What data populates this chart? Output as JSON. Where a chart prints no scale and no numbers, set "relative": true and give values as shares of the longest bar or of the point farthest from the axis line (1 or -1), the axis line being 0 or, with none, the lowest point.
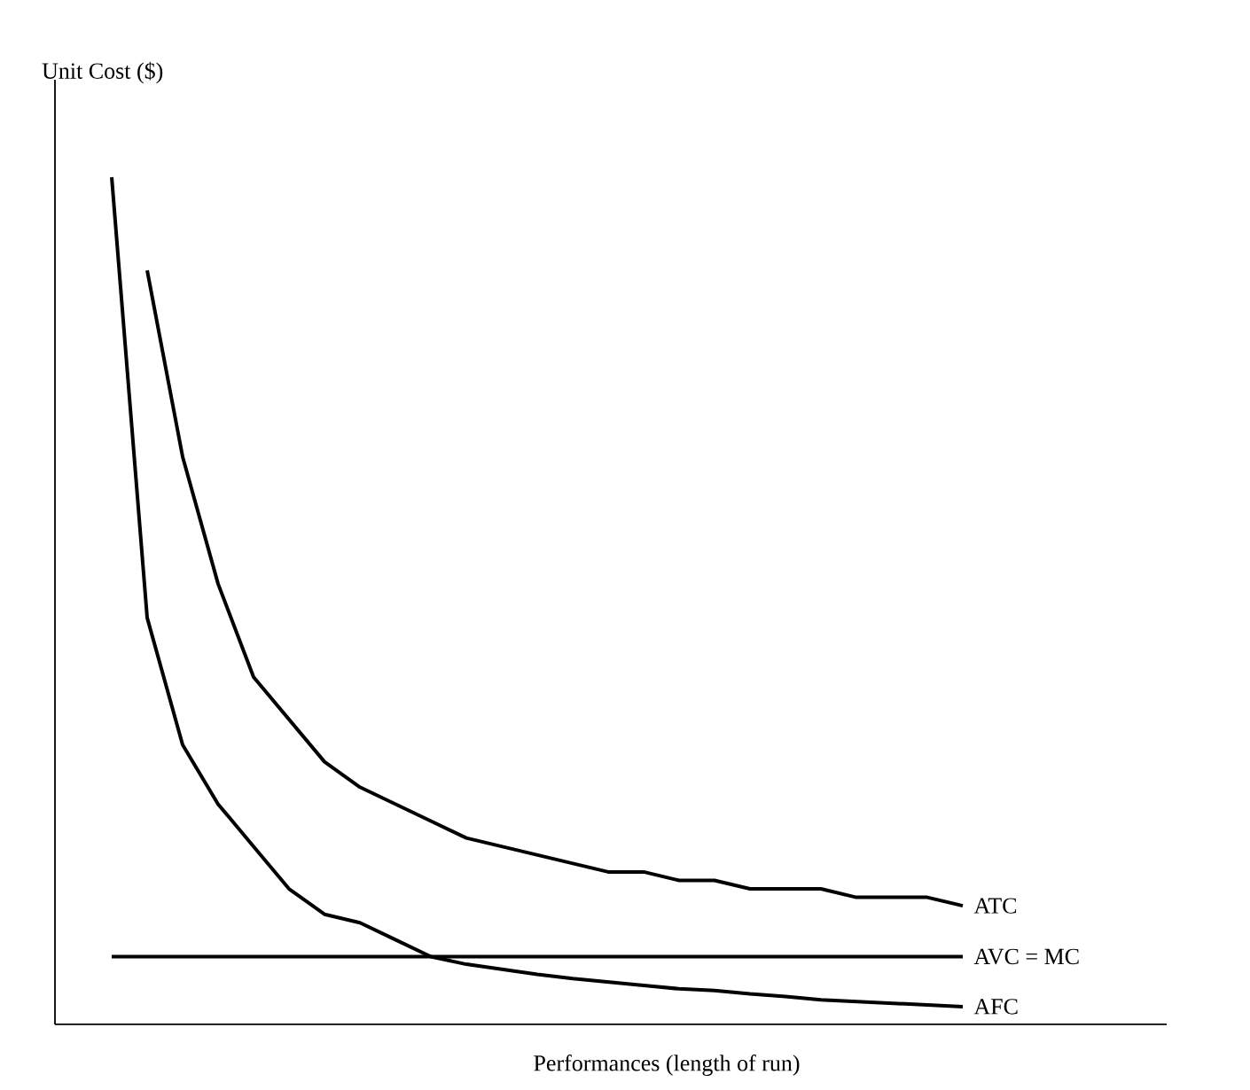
{
  "chart_data": {
    "type": "line",
    "relative": true,
    "xlabel": "Performances (length of run)",
    "ylabel": "Unit Cost ($)",
    "categories": [
      null,
      null,
      null,
      null,
      null,
      null,
      null,
      null,
      null,
      null,
      null,
      null,
      null,
      null,
      null,
      null,
      null,
      null,
      null,
      null,
      null,
      null,
      null,
      null,
      null
    ],
    "series": [
      {
        "name": "ATC",
        "color": "#000000",
        "values": [
          null,
          0.89,
          0.67,
          0.52,
          0.41,
          0.36,
          0.31,
          0.28,
          0.26,
          0.24,
          0.22,
          0.21,
          0.2,
          0.19,
          0.18,
          0.18,
          0.17,
          0.17,
          0.16,
          0.16,
          0.16,
          0.15,
          0.15,
          0.15,
          0.14
        ]
      },
      {
        "name": "AVC = MC",
        "color": "#000000",
        "values": [
          0.08,
          0.08,
          0.08,
          0.08,
          0.08,
          0.08,
          0.08,
          0.08,
          0.08,
          0.08,
          0.08,
          0.08,
          0.08,
          0.08,
          0.08,
          0.08,
          0.08,
          0.08,
          0.08,
          0.08,
          0.08,
          0.08,
          0.08,
          0.08,
          0.08
        ]
      },
      {
        "name": "AFC",
        "color": "#000000",
        "values": [
          1.0,
          0.48,
          0.33,
          0.26,
          0.21,
          0.16,
          0.13,
          0.12,
          0.1,
          0.08,
          0.071,
          0.065,
          0.059,
          0.054,
          0.05,
          0.046,
          0.042,
          0.04,
          0.036,
          0.033,
          0.029,
          0.027,
          0.025,
          0.023,
          0.021
        ]
      }
    ]
  }
}
